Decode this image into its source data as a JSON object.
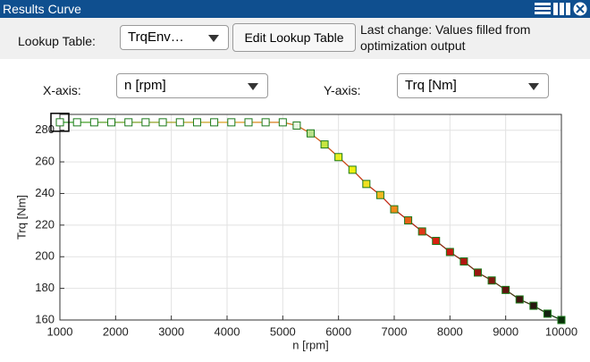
{
  "window_title": "Results Curve",
  "toolbar": {
    "lookup_label": "Lookup Table:",
    "lookup_value": "TrqEnv…",
    "edit_button": "Edit Lookup Table",
    "last_change": "Last change: Values filled from optimization output"
  },
  "axis_selectors": {
    "x_label": "X-axis:",
    "x_value": "n [rpm]",
    "y_label": "Y-axis:",
    "y_value": "Trq [Nm]"
  },
  "chart_data": {
    "type": "line",
    "x_label": "n [rpm]",
    "y_label": "Trq [Nm]",
    "x": [
      1000,
      1308,
      1615,
      1923,
      2231,
      2538,
      2846,
      3154,
      3462,
      3769,
      4077,
      4385,
      4692,
      5000,
      5250,
      5500,
      5750,
      6000,
      6250,
      6500,
      6750,
      7000,
      7250,
      7500,
      7750,
      8000,
      8250,
      8500,
      8750,
      9000,
      9250,
      9500,
      9750,
      10000
    ],
    "values": [
      285,
      285,
      285,
      285,
      285,
      285,
      285,
      285,
      285,
      285,
      285,
      285,
      285,
      285,
      283,
      278,
      271,
      263,
      255,
      246,
      239,
      230,
      223,
      216,
      210,
      203,
      197,
      190,
      185,
      179,
      173,
      169,
      164,
      160
    ],
    "marker_fills": [
      "#ffffff",
      "#ffffff",
      "#ffffff",
      "#ffffff",
      "#ffffff",
      "#ffffff",
      "#ffffff",
      "#ffffff",
      "#ffffff",
      "#ffffff",
      "#ffffff",
      "#ffffff",
      "#ffffff",
      "#ffffff",
      "#e8f5e0",
      "#b8e08a",
      "#c8e640",
      "#e8ee20",
      "#f0f010",
      "#f0e020",
      "#f0b820",
      "#f08a18",
      "#e86018",
      "#e03818",
      "#d82010",
      "#c81810",
      "#b01810",
      "#981810",
      "#801810",
      "#601410",
      "#401410",
      "#281810",
      "#142010",
      "#0a300a"
    ],
    "marker_edge": "#1a7a1a",
    "line_colors": [
      "#2aa02a",
      "#e0a020",
      "#c02010",
      "#104010"
    ],
    "xlim": [
      1000,
      10000
    ],
    "ylim": [
      160,
      290
    ],
    "xticks": [
      1000,
      2000,
      3000,
      4000,
      5000,
      6000,
      7000,
      8000,
      9000,
      10000
    ],
    "yticks": [
      160,
      180,
      200,
      220,
      240,
      260,
      280
    ],
    "grid": true,
    "selected_index": 0
  }
}
